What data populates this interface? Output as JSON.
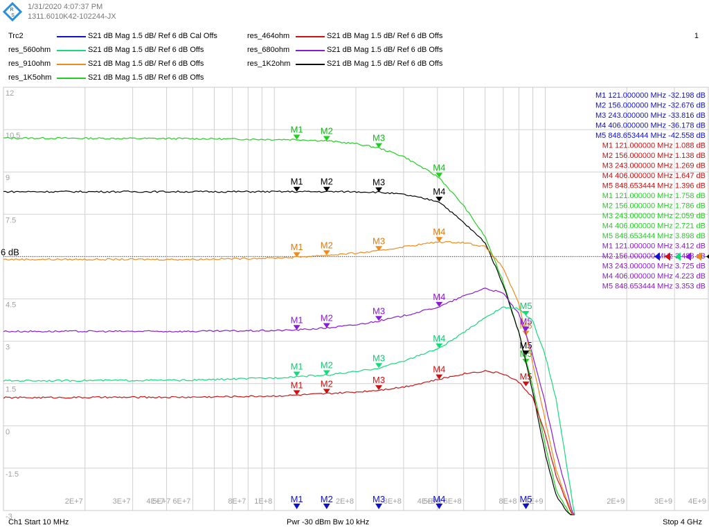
{
  "header": {
    "datetime": "1/31/2020 4:07:37 PM",
    "instrument_id": "1311.6010K42-102244-JX",
    "channel_num": "1",
    "logo": "rohde-schwarz-logo"
  },
  "traces": [
    {
      "name": "Trc2",
      "color": "#1010d0",
      "desc": "S21  dB Mag  1.5 dB/ Ref 6 dB  Cal Offs"
    },
    {
      "name": "res_560ohm",
      "color": "#10dc7a",
      "desc": "S21  dB Mag  1.5 dB/ Ref 6 dB  Offs"
    },
    {
      "name": "res_910ohm",
      "color": "#f08a1a",
      "desc": "S21  dB Mag  1.5 dB/ Ref 6 dB  Offs"
    },
    {
      "name": "res_1K5ohm",
      "color": "#20d020",
      "desc": "S21  dB Mag  1.5 dB/ Ref 6 dB  Offs"
    },
    {
      "name": "res_464ohm",
      "color": "#d01010",
      "desc": "S21  dB Mag  1.5 dB/ Ref 6 dB  Offs"
    },
    {
      "name": "res_680ohm",
      "color": "#8a18d8",
      "desc": "S21  dB Mag  1.5 dB/ Ref 6 dB  Offs"
    },
    {
      "name": "res_1K2ohm",
      "color": "#000000",
      "desc": "S21  dB Mag  1.5 dB/ Ref 6 dB  Offs"
    }
  ],
  "ref_label": "6 dB",
  "marker_table": [
    {
      "color": "#1010d0",
      "rows": [
        "M1  121.000000  MHz  -32.198  dB",
        "M2  156.000000  MHz  -32.676  dB",
        "M3  243.000000  MHz  -33.816  dB",
        "M4  406.000000  MHz  -36.178  dB",
        "M5  848.653444  MHz  -42.558  dB"
      ]
    },
    {
      "color": "#d01010",
      "rows": [
        "M1  121.000000  MHz  1.088  dB",
        "M2  156.000000  MHz  1.138  dB",
        "M3  243.000000  MHz  1.269  dB",
        "M4  406.000000  MHz  1.647  dB",
        "M5  848.653444  MHz  1.396  dB"
      ]
    },
    {
      "color": "#20d020",
      "rows": [
        "M1  121.000000  MHz  1.758  dB",
        "M2  156.000000  MHz  1.786  dB",
        "M3  243.000000  MHz  2.059  dB",
        "M4  406.000000  MHz  2.721  dB",
        "M5  848.653444  MHz  3.898  dB"
      ]
    },
    {
      "color": "#8a18d8",
      "rows": [
        "M1  121.000000  MHz  3.412  dB",
        "M2  156.000000  MHz  3.488  dB",
        "M3  243.000000  MHz  3.725  dB",
        "M4  406.000000  MHz  4.223  dB",
        "M5  848.653444  MHz  3.353  dB"
      ]
    }
  ],
  "footer": {
    "left": "Ch1  Start  10 MHz",
    "center": "Pwr  -30 dBm  Bw  10 kHz",
    "right": "Stop  4 GHz"
  },
  "chart_data": {
    "type": "line",
    "x_scale": "log",
    "xlim": [
      10000000,
      4000000000
    ],
    "ylim": [
      -3,
      12
    ],
    "ref_level": 6,
    "yticks": [
      12,
      10.5,
      9,
      7.5,
      6,
      4.5,
      3,
      1.5,
      0,
      -1.5,
      -3
    ],
    "ytick_labels": [
      "12",
      "10.5",
      "9",
      "7.5",
      "",
      "4.5",
      "3",
      "1.5",
      "0",
      "-1.5",
      "-3"
    ],
    "xticks": [
      {
        "x": 20000000,
        "label": "2E+7"
      },
      {
        "x": 30000000,
        "label": "3E+7"
      },
      {
        "x": 40000000,
        "label": "4E+7"
      },
      {
        "x": 50000000,
        "label": "5E+7 6E+7"
      },
      {
        "x": 80000000,
        "label": "8E+7"
      },
      {
        "x": 100000000,
        "label": "1E+8"
      },
      {
        "x": 200000000,
        "label": "2E+8"
      },
      {
        "x": 300000000,
        "label": "3E+8"
      },
      {
        "x": 400000000,
        "label": "4E+8"
      },
      {
        "x": 500000000,
        "label": "5E+8 6E+8"
      },
      {
        "x": 800000000,
        "label": "8E+8"
      },
      {
        "x": 1000000000,
        "label": "1E+9"
      },
      {
        "x": 2000000000,
        "label": "2E+9"
      },
      {
        "x": 3000000000,
        "label": "3E+9"
      },
      {
        "x": 4000000000,
        "label": "4E+9"
      }
    ],
    "marker_freqs": [
      121000000,
      156000000,
      243000000,
      406000000,
      848653444
    ],
    "series": [
      {
        "name": "res_1K5ohm",
        "color": "#20d020",
        "label_color": "#10b818",
        "x": [
          10000000,
          50000000,
          100000000,
          121000000,
          156000000,
          200000000,
          243000000,
          300000000,
          406000000,
          500000000,
          600000000,
          700000000,
          800000000,
          900000000,
          1000000000,
          1100000000,
          1300000000
        ],
        "y": [
          10.2,
          10.18,
          10.15,
          10.15,
          10.1,
          10.0,
          9.85,
          9.55,
          8.8,
          7.8,
          6.7,
          5.1,
          3.3,
          1.4,
          -0.7,
          -2.3,
          -3.5
        ],
        "markers": [
          10.15,
          10.1,
          9.85,
          8.8,
          2.2
        ]
      },
      {
        "name": "res_1K2ohm",
        "color": "#000000",
        "label_color": "#000000",
        "x": [
          10000000,
          50000000,
          100000000,
          121000000,
          156000000,
          200000000,
          243000000,
          300000000,
          406000000,
          500000000,
          600000000,
          700000000,
          800000000,
          900000000,
          1000000000,
          1100000000,
          1300000000
        ],
        "y": [
          8.3,
          8.3,
          8.3,
          8.3,
          8.3,
          8.3,
          8.28,
          8.2,
          7.95,
          7.2,
          6.5,
          5.0,
          3.3,
          1.2,
          -1.0,
          -2.5,
          -3.5
        ],
        "markers": [
          8.3,
          8.3,
          8.28,
          7.95,
          2.5
        ]
      },
      {
        "name": "res_910ohm",
        "color": "#f08a1a",
        "label_color": "#e07a10",
        "x": [
          10000000,
          50000000,
          100000000,
          121000000,
          156000000,
          200000000,
          243000000,
          300000000,
          406000000,
          500000000,
          600000000,
          700000000,
          800000000,
          900000000,
          1000000000,
          1100000000,
          1300000000
        ],
        "y": [
          5.9,
          5.9,
          5.95,
          5.98,
          6.05,
          6.12,
          6.2,
          6.35,
          6.52,
          6.5,
          6.35,
          5.6,
          4.3,
          2.2,
          0.2,
          -1.6,
          -3.5
        ],
        "markers": [
          5.98,
          6.05,
          6.2,
          6.52,
          3.2
        ]
      },
      {
        "name": "res_680ohm",
        "color": "#8a18d8",
        "label_color": "#8a18d8",
        "x": [
          10000000,
          50000000,
          100000000,
          121000000,
          156000000,
          200000000,
          243000000,
          300000000,
          406000000,
          500000000,
          600000000,
          700000000,
          800000000,
          900000000,
          1000000000,
          1100000000,
          1300000000
        ],
        "y": [
          3.35,
          3.35,
          3.38,
          3.4,
          3.47,
          3.58,
          3.72,
          3.9,
          4.22,
          4.6,
          4.88,
          4.7,
          3.95,
          2.5,
          0.8,
          -1.0,
          -3.5
        ],
        "markers": [
          3.4,
          3.47,
          3.72,
          4.22,
          3.35
        ]
      },
      {
        "name": "res_560ohm",
        "color": "#10dc7a",
        "label_color": "#10c870",
        "x": [
          10000000,
          50000000,
          100000000,
          121000000,
          156000000,
          200000000,
          243000000,
          300000000,
          406000000,
          500000000,
          600000000,
          700000000,
          800000000,
          900000000,
          1000000000,
          1100000000,
          1300000000
        ],
        "y": [
          1.6,
          1.62,
          1.7,
          1.75,
          1.8,
          1.92,
          2.05,
          2.3,
          2.75,
          3.3,
          3.85,
          4.2,
          4.15,
          3.7,
          2.5,
          0.9,
          -3.5
        ],
        "markers": [
          1.75,
          1.8,
          2.05,
          2.75,
          3.9
        ]
      },
      {
        "name": "res_464ohm",
        "color": "#d01010",
        "label_color": "#d01010",
        "x": [
          10000000,
          50000000,
          100000000,
          121000000,
          156000000,
          200000000,
          243000000,
          300000000,
          406000000,
          500000000,
          600000000,
          700000000,
          800000000,
          900000000,
          1000000000,
          1100000000,
          1300000000
        ],
        "y": [
          1.0,
          1.02,
          1.06,
          1.09,
          1.14,
          1.2,
          1.27,
          1.38,
          1.65,
          1.85,
          1.95,
          1.85,
          1.55,
          1.0,
          -0.3,
          -1.8,
          -3.5
        ],
        "markers": [
          1.09,
          1.14,
          1.27,
          1.65,
          1.4
        ]
      }
    ]
  }
}
